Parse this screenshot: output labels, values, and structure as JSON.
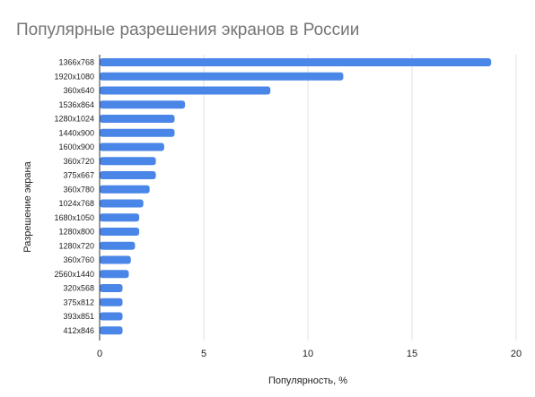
{
  "chart_data": {
    "type": "bar",
    "orientation": "horizontal",
    "title": "Популярные разрешения экранов в России",
    "xlabel": "Популярность, %",
    "ylabel": "Разрешение экрана",
    "categories": [
      "1366x768",
      "1920x1080",
      "360x640",
      "1536x864",
      "1280x1024",
      "1440x900",
      "1600x900",
      "360x720",
      "375x667",
      "360x780",
      "1024x768",
      "1680x1050",
      "1280x800",
      "1280x720",
      "360x760",
      "2560x1440",
      "320x568",
      "375x812",
      "393x851",
      "412x846"
    ],
    "values": [
      18.8,
      11.7,
      8.2,
      4.1,
      3.6,
      3.6,
      3.1,
      2.7,
      2.7,
      2.4,
      2.1,
      1.9,
      1.9,
      1.7,
      1.5,
      1.4,
      1.1,
      1.1,
      1.1,
      1.1
    ],
    "xlim": [
      0,
      20
    ],
    "xticks": [
      0,
      5,
      10,
      15,
      20
    ],
    "grid": true,
    "legend": "none",
    "bar_color": "#4a86e8"
  }
}
